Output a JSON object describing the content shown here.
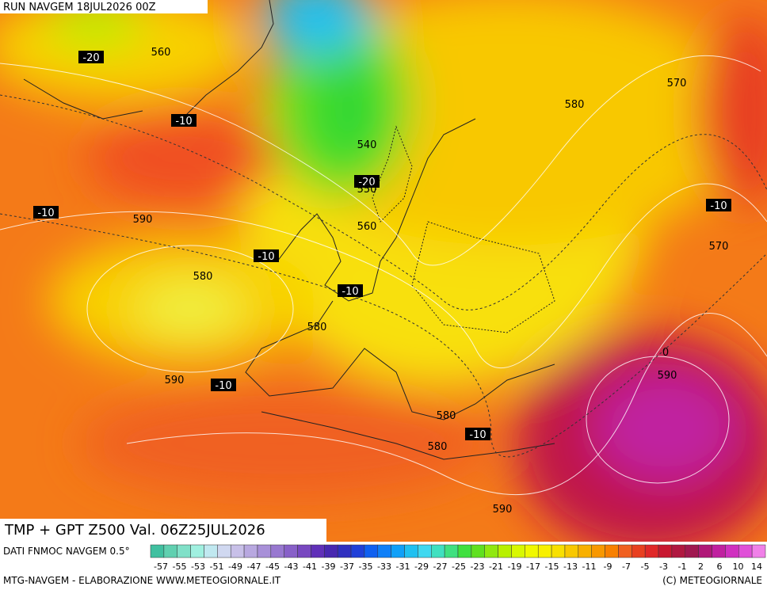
{
  "header": {
    "run": "RUN NAVGEM 18JUL2026 00Z"
  },
  "map": {
    "title": "TMP + GPT Z500 Val. 06Z25JUL2026",
    "contour_labels": [
      "560",
      "-20",
      "-10",
      "540",
      "-20",
      "550",
      "560",
      "-10",
      "590",
      "-10",
      "580",
      "-10",
      "580",
      "590",
      "-10",
      "570",
      "580",
      "-10",
      "570",
      "580",
      "-10",
      "580",
      "0",
      "590",
      "590"
    ]
  },
  "legend": {
    "source": "DATI FNMOC NAVGEM 0.5°",
    "labels": [
      -57,
      -55,
      -53,
      -51,
      -49,
      -47,
      -45,
      -43,
      -41,
      -39,
      -37,
      -35,
      -33,
      -31,
      -29,
      -27,
      -25,
      -23,
      -21,
      -19,
      -17,
      -15,
      -13,
      -11,
      -9,
      -7,
      -5,
      -3,
      -1,
      2,
      6,
      10,
      14
    ],
    "colors": [
      "#40c0a0",
      "#60d0b0",
      "#80e0c8",
      "#a0f0e0",
      "#c0e8f0",
      "#d0d8f0",
      "#c8c0e8",
      "#b8a8e0",
      "#a890d8",
      "#9878d0",
      "#8860c8",
      "#7848c0",
      "#6030b8",
      "#4828b0",
      "#3030c0",
      "#2040d8",
      "#1060f0",
      "#1080f8",
      "#10a0f8",
      "#20c0f0",
      "#40d8f0",
      "#40e0c0",
      "#40e080",
      "#40e040",
      "#60e020",
      "#90e810",
      "#b8f000",
      "#d8f800",
      "#f0f800",
      "#f8f000",
      "#f8e000",
      "#f8c800",
      "#f8b000",
      "#f89800",
      "#f88000",
      "#f06020",
      "#e84020",
      "#e02828",
      "#c81830",
      "#b01840",
      "#a01850",
      "#b01878",
      "#c020a0",
      "#d030c0",
      "#e050d8",
      "#f080e8"
    ]
  },
  "footer": {
    "left": "MTG-NAVGEM - ELABORAZIONE WWW.METEOGIORNALE.IT",
    "right": "(C) METEOGIORNALE"
  }
}
